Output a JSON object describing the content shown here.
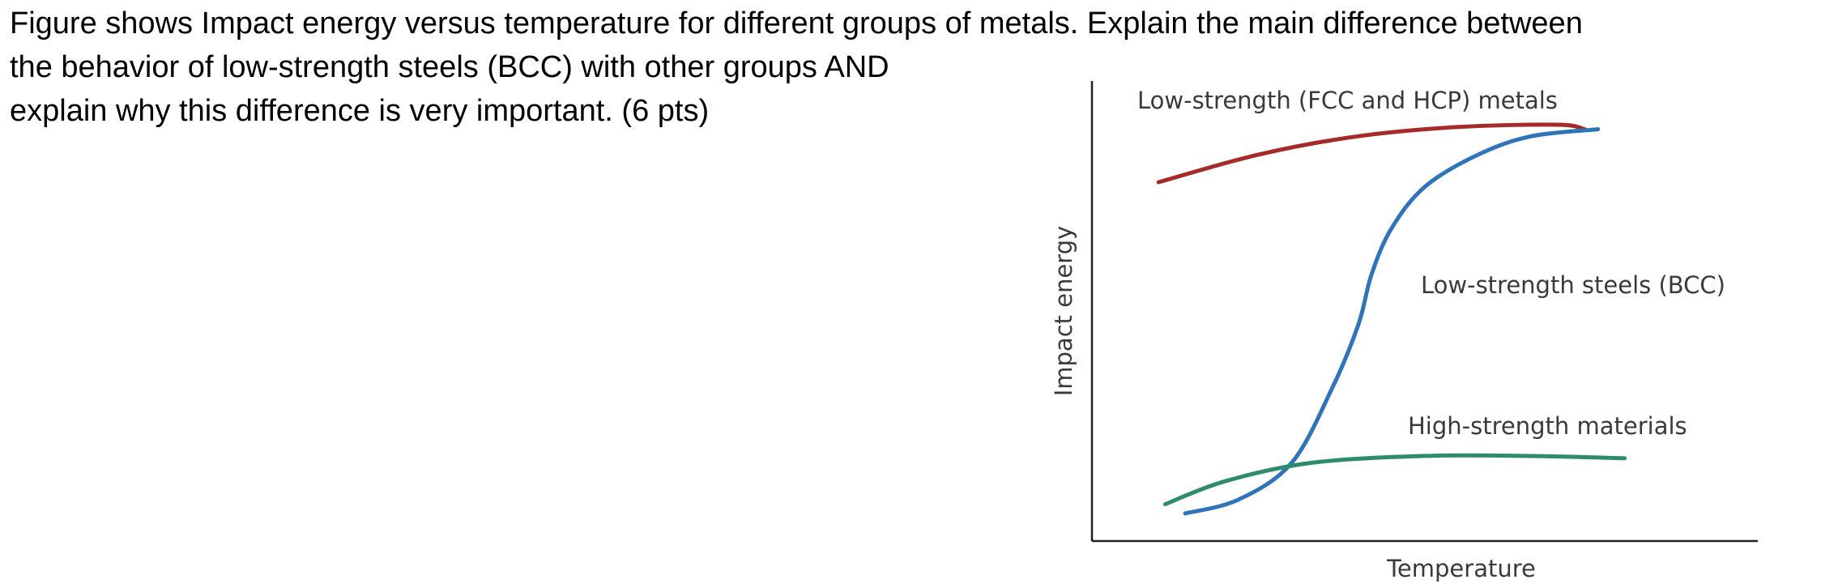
{
  "question": {
    "lines": [
      "Figure shows Impact energy versus temperature for different groups of metals. Explain the main difference between",
      "the behavior of low-strength steels (BCC) with other groups AND",
      "explain why this difference is very important. (6 pts)"
    ]
  },
  "chart_data": {
    "type": "line",
    "title": "",
    "xlabel": "Temperature",
    "ylabel": "Impact energy",
    "xlim": [
      0,
      100
    ],
    "ylim": [
      0,
      100
    ],
    "grid": false,
    "legend": "none (series labelled directly on the plot)",
    "x_ticks": [],
    "y_ticks": [],
    "series": [
      {
        "name": "Low-strength (FCC and HCP) metals",
        "color": "#a52a2a",
        "x": [
          10,
          25,
          40,
          55,
          70,
          74
        ],
        "y": [
          78,
          84,
          88,
          90,
          90.5,
          89.5
        ]
      },
      {
        "name": "Low-strength steels (BCC)",
        "color": "#2f74b8",
        "x": [
          14,
          22,
          30,
          36,
          40,
          42,
          45,
          50,
          58,
          66,
          76
        ],
        "y": [
          6,
          9,
          17,
          33,
          47,
          58,
          68,
          77,
          84,
          88,
          89.5
        ]
      },
      {
        "name": "High-strength materials",
        "color": "#2e8b6e",
        "x": [
          11,
          20,
          33,
          50,
          65,
          80
        ],
        "y": [
          8,
          13,
          17,
          18.5,
          18.5,
          18
        ]
      }
    ]
  }
}
